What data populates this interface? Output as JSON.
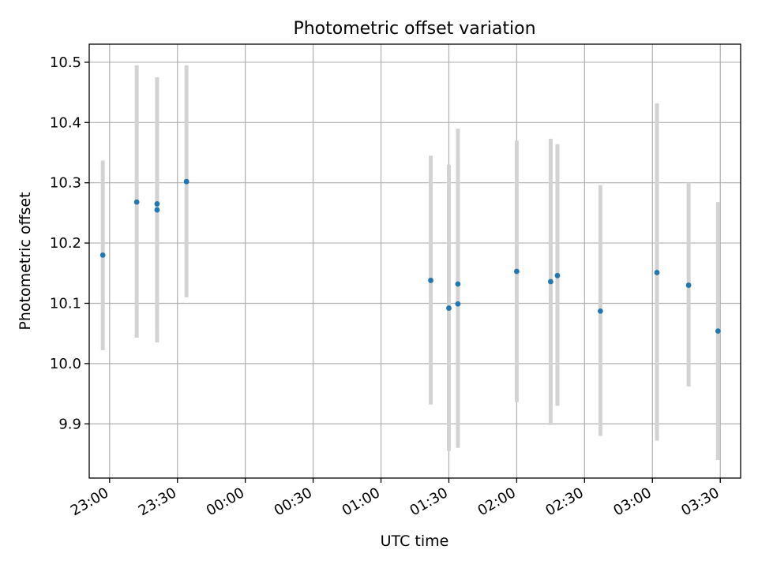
{
  "chart_data": {
    "type": "scatter",
    "title": "Photometric offset variation",
    "xlabel": "UTC time",
    "ylabel": "Photometric offset",
    "x_axis": {
      "min": "22:51",
      "max": "03:39",
      "ticks": [
        "23:00",
        "23:30",
        "00:00",
        "00:30",
        "01:00",
        "01:30",
        "02:00",
        "02:30",
        "03:00",
        "03:30"
      ]
    },
    "y_axis": {
      "min": 9.81,
      "max": 10.53,
      "ticks": [
        "9.9",
        "10.0",
        "10.1",
        "10.2",
        "10.3",
        "10.4",
        "10.5"
      ]
    },
    "grid": true,
    "colors": {
      "point": "#1f77b4",
      "errorbar": "#d3d3d3"
    },
    "points": [
      {
        "time": "22:57",
        "value": 10.18,
        "low": 10.022,
        "high": 10.337
      },
      {
        "time": "23:12",
        "value": 10.268,
        "low": 10.043,
        "high": 10.495
      },
      {
        "time": "23:21",
        "value": 10.265,
        "low": 10.055,
        "high": 10.475
      },
      {
        "time": "23:21",
        "value": 10.255,
        "low": 10.035,
        "high": 10.475
      },
      {
        "time": "23:34",
        "value": 10.302,
        "low": 10.11,
        "high": 10.495
      },
      {
        "time": "01:22",
        "value": 10.138,
        "low": 9.932,
        "high": 10.345
      },
      {
        "time": "01:30",
        "value": 10.092,
        "low": 9.855,
        "high": 10.33
      },
      {
        "time": "01:34",
        "value": 10.132,
        "low": 9.875,
        "high": 10.39
      },
      {
        "time": "01:34",
        "value": 10.099,
        "low": 9.86,
        "high": 10.34
      },
      {
        "time": "02:00",
        "value": 10.153,
        "low": 9.936,
        "high": 10.37
      },
      {
        "time": "02:15",
        "value": 10.136,
        "low": 9.898,
        "high": 10.373
      },
      {
        "time": "02:18",
        "value": 10.146,
        "low": 9.93,
        "high": 10.364
      },
      {
        "time": "02:37",
        "value": 10.087,
        "low": 9.88,
        "high": 10.296
      },
      {
        "time": "03:02",
        "value": 10.151,
        "low": 9.872,
        "high": 10.432
      },
      {
        "time": "03:16",
        "value": 10.13,
        "low": 9.962,
        "high": 10.3
      },
      {
        "time": "03:29",
        "value": 10.054,
        "low": 9.84,
        "high": 10.268
      }
    ]
  }
}
